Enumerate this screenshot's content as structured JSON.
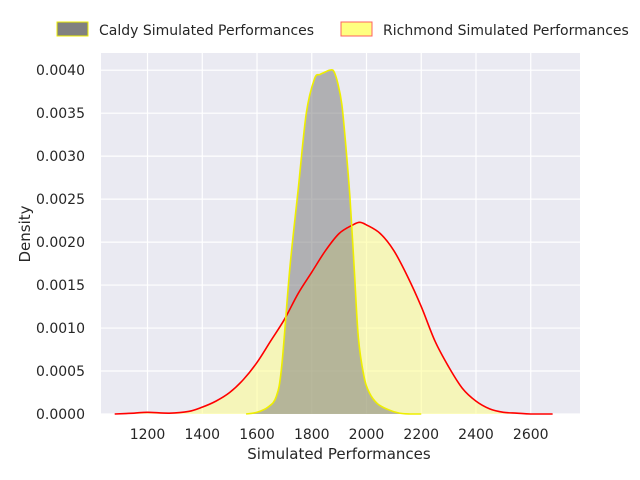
{
  "chart_data": {
    "type": "area",
    "title": "",
    "xlabel": "Simulated Performances",
    "ylabel": "Density",
    "xlim": [
      1030,
      2780
    ],
    "ylim": [
      0,
      0.0042
    ],
    "x_ticks": [
      "1200",
      "1400",
      "1600",
      "1800",
      "2000",
      "2200",
      "2400",
      "2600"
    ],
    "y_ticks": [
      "0.0000",
      "0.0005",
      "0.0010",
      "0.0015",
      "0.0020",
      "0.0025",
      "0.0030",
      "0.0035",
      "0.0040"
    ],
    "grid": true,
    "legend_position": "top",
    "series": [
      {
        "name": "Caldy Simulated Performances",
        "fill_color": "#808080",
        "fill_opacity": 0.55,
        "line_color": "#eeee00",
        "x": [
          1560,
          1600,
          1640,
          1670,
          1690,
          1720,
          1750,
          1780,
          1810,
          1830,
          1850,
          1865,
          1880,
          1895,
          1910,
          1925,
          1940,
          1955,
          1970,
          1990,
          2010,
          2040,
          2080,
          2120,
          2160,
          2200
        ],
        "y": [
          0.0,
          2e-05,
          8e-05,
          0.0002,
          0.00055,
          0.0017,
          0.0026,
          0.0035,
          0.0039,
          0.00395,
          0.00398,
          0.004,
          0.00399,
          0.00385,
          0.0036,
          0.0031,
          0.0025,
          0.0017,
          0.0009,
          0.00045,
          0.00025,
          0.00012,
          5e-05,
          1e-05,
          0.0,
          0.0
        ]
      },
      {
        "name": "Richmond Simulated Performances",
        "fill_color": "#ffff80",
        "fill_opacity": 0.5,
        "line_color": "#ff0000",
        "x": [
          1080,
          1150,
          1200,
          1280,
          1350,
          1400,
          1450,
          1500,
          1550,
          1600,
          1650,
          1700,
          1750,
          1800,
          1850,
          1900,
          1950,
          1975,
          2000,
          2050,
          2100,
          2150,
          2200,
          2250,
          2300,
          2350,
          2400,
          2450,
          2500,
          2550,
          2600,
          2680
        ],
        "y": [
          0.0,
          1e-05,
          2e-05,
          1e-05,
          3e-05,
          8e-05,
          0.00015,
          0.00025,
          0.0004,
          0.0006,
          0.00085,
          0.0011,
          0.0014,
          0.00165,
          0.0019,
          0.0021,
          0.0022,
          0.00223,
          0.0022,
          0.0021,
          0.0019,
          0.0016,
          0.00125,
          0.00085,
          0.00055,
          0.0003,
          0.00015,
          6e-05,
          2e-05,
          1e-05,
          0.0,
          0.0
        ]
      }
    ]
  }
}
